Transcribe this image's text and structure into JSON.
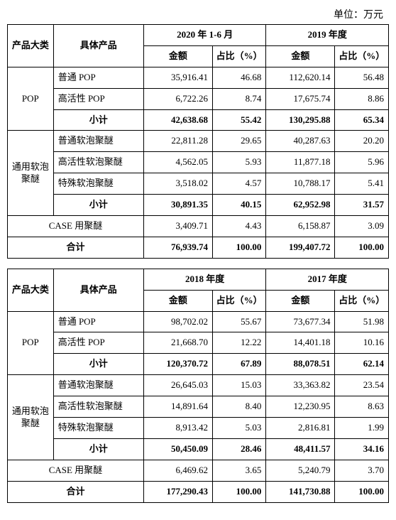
{
  "unit_label": "单位：万元",
  "tables": [
    {
      "header": {
        "cat": "产品大类",
        "prod": "具体产品",
        "period1": "2020 年 1-6 月",
        "period2": "2019 年度",
        "amt": "金额",
        "pct": "占比（%）"
      },
      "groups": [
        {
          "category": "POP",
          "rows": [
            {
              "prod": "普通 POP",
              "a1": "35,916.41",
              "p1": "46.68",
              "a2": "112,620.14",
              "p2": "56.48"
            },
            {
              "prod": "高活性 POP",
              "a1": "6,722.26",
              "p1": "8.74",
              "a2": "17,675.74",
              "p2": "8.86"
            }
          ],
          "subtotal": {
            "label": "小计",
            "a1": "42,638.68",
            "p1": "55.42",
            "a2": "130,295.88",
            "p2": "65.34"
          }
        },
        {
          "category": "通用软泡聚醚",
          "rows": [
            {
              "prod": "普通软泡聚醚",
              "a1": "22,811.28",
              "p1": "29.65",
              "a2": "40,287.63",
              "p2": "20.20"
            },
            {
              "prod": "高活性软泡聚醚",
              "a1": "4,562.05",
              "p1": "5.93",
              "a2": "11,877.18",
              "p2": "5.96"
            },
            {
              "prod": "特殊软泡聚醚",
              "a1": "3,518.02",
              "p1": "4.57",
              "a2": "10,788.17",
              "p2": "5.41"
            }
          ],
          "subtotal": {
            "label": "小计",
            "a1": "30,891.35",
            "p1": "40.15",
            "a2": "62,952.98",
            "p2": "31.57"
          }
        }
      ],
      "case_row": {
        "label": "CASE 用聚醚",
        "a1": "3,409.71",
        "p1": "4.43",
        "a2": "6,158.87",
        "p2": "3.09"
      },
      "total_row": {
        "label": "合计",
        "a1": "76,939.74",
        "p1": "100.00",
        "a2": "199,407.72",
        "p2": "100.00"
      }
    },
    {
      "header": {
        "cat": "产品大类",
        "prod": "具体产品",
        "period1": "2018 年度",
        "period2": "2017 年度",
        "amt": "金额",
        "pct": "占比（%）"
      },
      "groups": [
        {
          "category": "POP",
          "rows": [
            {
              "prod": "普通 POP",
              "a1": "98,702.02",
              "p1": "55.67",
              "a2": "73,677.34",
              "p2": "51.98"
            },
            {
              "prod": "高活性 POP",
              "a1": "21,668.70",
              "p1": "12.22",
              "a2": "14,401.18",
              "p2": "10.16"
            }
          ],
          "subtotal": {
            "label": "小计",
            "a1": "120,370.72",
            "p1": "67.89",
            "a2": "88,078.51",
            "p2": "62.14"
          }
        },
        {
          "category": "通用软泡聚醚",
          "rows": [
            {
              "prod": "普通软泡聚醚",
              "a1": "26,645.03",
              "p1": "15.03",
              "a2": "33,363.82",
              "p2": "23.54"
            },
            {
              "prod": "高活性软泡聚醚",
              "a1": "14,891.64",
              "p1": "8.40",
              "a2": "12,230.95",
              "p2": "8.63"
            },
            {
              "prod": "特殊软泡聚醚",
              "a1": "8,913.42",
              "p1": "5.03",
              "a2": "2,816.81",
              "p2": "1.99"
            }
          ],
          "subtotal": {
            "label": "小计",
            "a1": "50,450.09",
            "p1": "28.46",
            "a2": "48,411.57",
            "p2": "34.16"
          }
        }
      ],
      "case_row": {
        "label": "CASE 用聚醚",
        "a1": "6,469.62",
        "p1": "3.65",
        "a2": "5,240.79",
        "p2": "3.70"
      },
      "total_row": {
        "label": "合计",
        "a1": "177,290.43",
        "p1": "100.00",
        "a2": "141,730.88",
        "p2": "100.00"
      }
    }
  ],
  "colwidths": [
    "60px",
    "118px",
    "90px",
    "70px",
    "90px",
    "70px"
  ]
}
